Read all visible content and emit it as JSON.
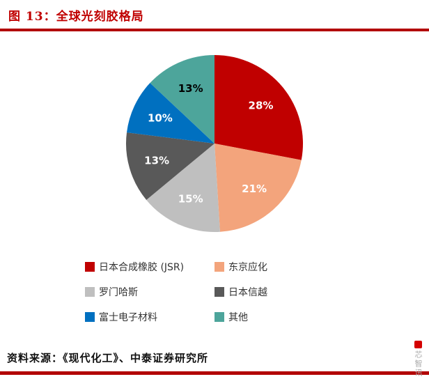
{
  "header": {
    "title": "图 13：全球光刻胶格局",
    "accent_color": "#b20000"
  },
  "chart_data": {
    "type": "pie",
    "title": "全球光刻胶格局",
    "labels": [
      "日本合成橡胶 (JSR)",
      "东京应化",
      "罗门哈斯",
      "日本信越",
      "富士电子材料",
      "其他"
    ],
    "values": [
      28,
      21,
      15,
      13,
      10,
      13
    ],
    "unit": "%",
    "data_labels": [
      "28%",
      "21%",
      "15%",
      "13%",
      "10%",
      "13%"
    ],
    "colors": [
      "#c00000",
      "#f3a47c",
      "#bfbfbf",
      "#595959",
      "#0070c0",
      "#4da59b"
    ],
    "data_label_colors": [
      "#ffffff",
      "#ffffff",
      "#ffffff",
      "#ffffff",
      "#ffffff",
      "#000000"
    ],
    "start_angle_deg": 0,
    "direction": "clockwise",
    "legend_position": "bottom",
    "legend_columns": 2
  },
  "footer": {
    "source": "资料来源：《现代化工》、中泰证券研究所"
  },
  "watermark": {
    "text": "芯智讯",
    "logo_color": "#d40000"
  }
}
